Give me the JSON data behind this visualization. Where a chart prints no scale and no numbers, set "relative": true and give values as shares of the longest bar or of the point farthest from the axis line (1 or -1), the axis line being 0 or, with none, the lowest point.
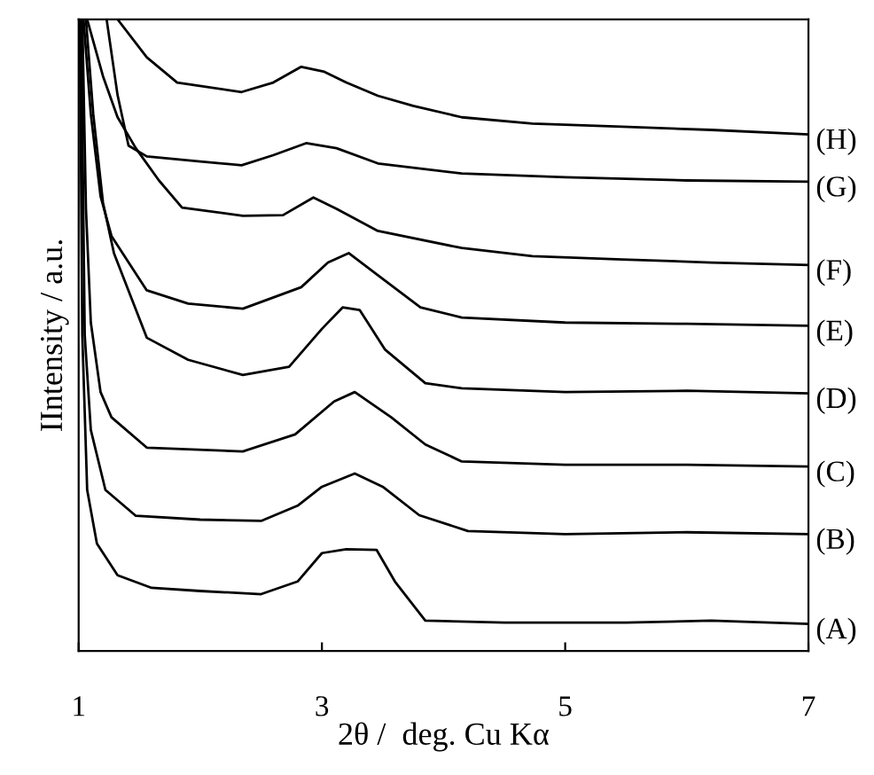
{
  "chart_data": {
    "type": "line",
    "relative": true,
    "xlabel": "2θ /  deg. Cu Kα",
    "ylabel": "IIntensity / a.u.",
    "xlim": [
      1,
      7
    ],
    "xticks": [
      1,
      3,
      5,
      7
    ],
    "grid": false,
    "legend": false,
    "marker": "none",
    "line_style": "solid",
    "series": [
      {
        "name": "(A)",
        "color": "#000000",
        "x": [
          1.01,
          1.03,
          1.07,
          1.15,
          1.32,
          1.6,
          2.0,
          2.5,
          2.8,
          3.0,
          3.2,
          3.45,
          3.6,
          3.85,
          4.5,
          5.5,
          6.2,
          7
        ],
        "values": [
          1.0,
          0.5,
          0.255,
          0.17,
          0.12,
          0.1,
          0.095,
          0.09,
          0.11,
          0.155,
          0.161,
          0.16,
          0.11,
          0.048,
          0.045,
          0.045,
          0.048,
          0.043
        ]
      },
      {
        "name": "(B)",
        "color": "#000000",
        "x": [
          1.02,
          1.05,
          1.1,
          1.22,
          1.47,
          2.0,
          2.5,
          2.8,
          3.0,
          3.27,
          3.5,
          3.8,
          4.2,
          5,
          6,
          7
        ],
        "values": [
          1.0,
          0.5,
          0.35,
          0.255,
          0.214,
          0.208,
          0.206,
          0.23,
          0.26,
          0.281,
          0.26,
          0.215,
          0.19,
          0.185,
          0.188,
          0.185
        ]
      },
      {
        "name": "(C)",
        "color": "#000000",
        "x": [
          1.03,
          1.06,
          1.1,
          1.18,
          1.27,
          1.56,
          2.35,
          2.78,
          3.1,
          3.27,
          3.57,
          3.85,
          4.15,
          5,
          6,
          7
        ],
        "values": [
          1.0,
          0.7,
          0.52,
          0.41,
          0.37,
          0.322,
          0.316,
          0.343,
          0.395,
          0.41,
          0.37,
          0.327,
          0.3,
          0.295,
          0.295,
          0.292
        ]
      },
      {
        "name": "(D)",
        "color": "#000000",
        "x": [
          1.06,
          1.12,
          1.2,
          1.29,
          1.56,
          1.9,
          2.35,
          2.73,
          3.0,
          3.17,
          3.31,
          3.52,
          3.85,
          4.15,
          5,
          6,
          7
        ],
        "values": [
          1.0,
          0.85,
          0.71,
          0.63,
          0.496,
          0.461,
          0.437,
          0.45,
          0.51,
          0.544,
          0.54,
          0.477,
          0.424,
          0.416,
          0.41,
          0.412,
          0.408
        ]
      },
      {
        "name": "(E)",
        "color": "#000000",
        "x": [
          1.04,
          1.1,
          1.18,
          1.27,
          1.56,
          1.9,
          2.35,
          2.83,
          3.05,
          3.22,
          3.46,
          3.81,
          4.15,
          5,
          6,
          7
        ],
        "values": [
          1.0,
          0.85,
          0.72,
          0.657,
          0.571,
          0.55,
          0.542,
          0.576,
          0.615,
          0.63,
          0.595,
          0.544,
          0.528,
          0.52,
          0.518,
          0.515
        ]
      },
      {
        "name": "(F)",
        "color": "#000000",
        "x": [
          1.07,
          1.2,
          1.32,
          1.47,
          1.66,
          1.85,
          2.35,
          2.68,
          2.93,
          3.12,
          3.46,
          4.15,
          4.73,
          5.47,
          6.2,
          7
        ],
        "values": [
          1.0,
          0.91,
          0.845,
          0.796,
          0.745,
          0.702,
          0.689,
          0.69,
          0.718,
          0.7,
          0.665,
          0.638,
          0.625,
          0.62,
          0.615,
          0.611
        ]
      },
      {
        "name": "(G)",
        "color": "#000000",
        "x": [
          1.23,
          1.32,
          1.41,
          1.56,
          2.0,
          2.34,
          2.6,
          2.87,
          3.12,
          3.46,
          4.15,
          5,
          6,
          7
        ],
        "values": [
          1.0,
          0.88,
          0.8,
          0.783,
          0.775,
          0.769,
          0.785,
          0.804,
          0.796,
          0.772,
          0.756,
          0.75,
          0.745,
          0.743
        ]
      },
      {
        "name": "(H)",
        "color": "#000000",
        "x": [
          1.32,
          1.56,
          1.81,
          2.34,
          2.6,
          2.83,
          3.02,
          3.2,
          3.46,
          3.75,
          4.15,
          4.73,
          5.47,
          6.2,
          7
        ],
        "values": [
          1.0,
          0.94,
          0.9,
          0.885,
          0.9,
          0.925,
          0.917,
          0.9,
          0.879,
          0.863,
          0.845,
          0.835,
          0.83,
          0.825,
          0.818
        ]
      }
    ]
  }
}
